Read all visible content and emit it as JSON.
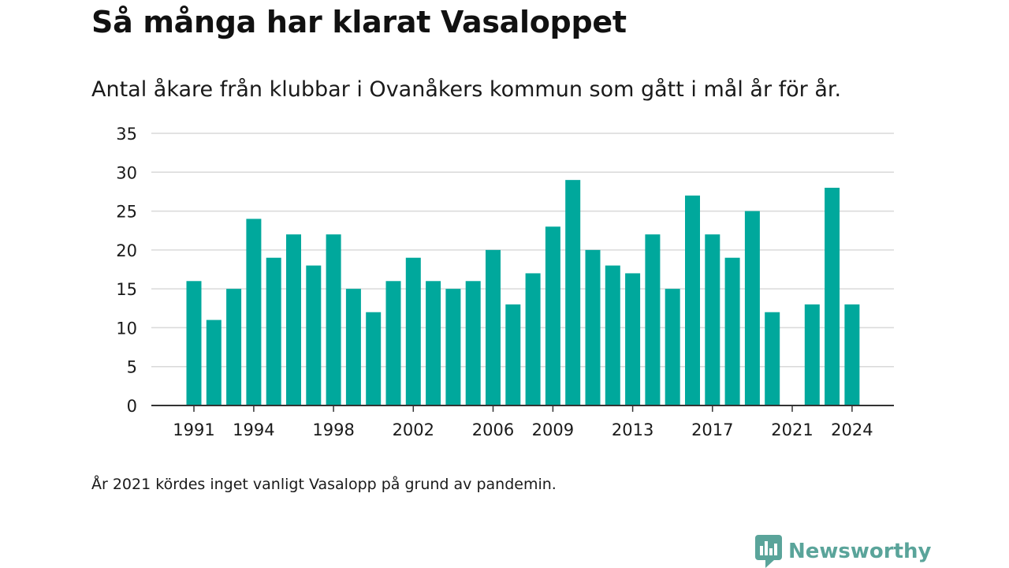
{
  "header": {
    "title": "Så många har klarat Vasaloppet",
    "subtitle": "Antal åkare från klubbar i Ovanåkers kommun som gått i mål år för år."
  },
  "footer": {
    "note": "År 2021 kördes inget vanligt Vasalopp på grund av pandemin.",
    "brand_name": "Newsworthy",
    "brand_icon": "newsworthy-logo-icon"
  },
  "colors": {
    "bar": "#00a89c",
    "grid": "#d9d9d9",
    "axis": "#333333",
    "brand": "#5aa49a"
  },
  "chart_data": {
    "type": "bar",
    "title": "Så många har klarat Vasaloppet",
    "subtitle": "Antal åkare från klubbar i Ovanåkers kommun som gått i mål år för år.",
    "categories": [
      1991,
      1992,
      1993,
      1994,
      1995,
      1996,
      1997,
      1998,
      1999,
      2000,
      2001,
      2002,
      2003,
      2004,
      2005,
      2006,
      2007,
      2008,
      2009,
      2010,
      2011,
      2012,
      2013,
      2014,
      2015,
      2016,
      2017,
      2018,
      2019,
      2020,
      2021,
      2022,
      2023,
      2024
    ],
    "values": [
      16,
      11,
      15,
      24,
      19,
      22,
      18,
      22,
      15,
      12,
      16,
      19,
      16,
      15,
      16,
      20,
      13,
      17,
      23,
      29,
      20,
      18,
      17,
      22,
      15,
      27,
      22,
      19,
      25,
      12,
      null,
      13,
      28,
      13
    ],
    "x_tick_labels": [
      "1991",
      "1994",
      "1998",
      "2002",
      "2006",
      "2009",
      "2013",
      "2017",
      "2021",
      "2024"
    ],
    "y_ticks": [
      0,
      5,
      10,
      15,
      20,
      25,
      30,
      35
    ],
    "ylim": [
      0,
      35
    ],
    "xlabel": "",
    "ylabel": "",
    "grid": "horizontal",
    "legend": "none",
    "annotations": [
      "År 2021 kördes inget vanligt Vasalopp på grund av pandemin."
    ]
  }
}
